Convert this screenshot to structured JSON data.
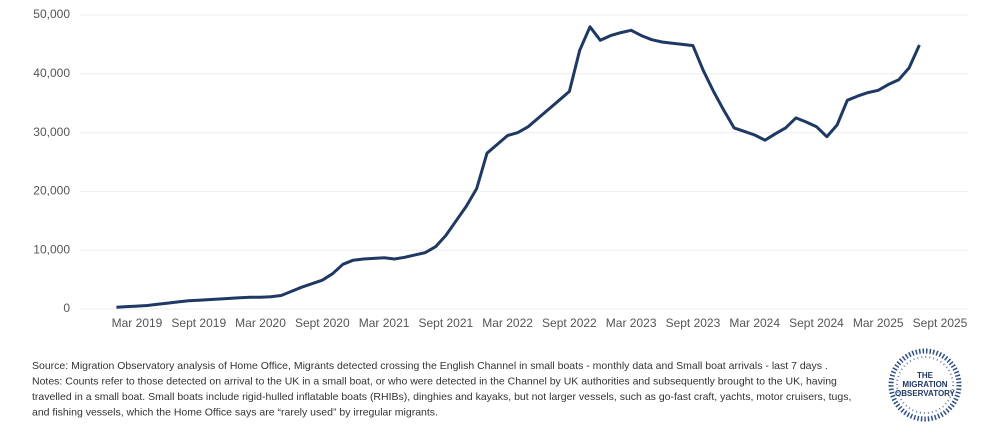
{
  "chart_data": {
    "type": "line",
    "x": [
      "2019-01",
      "2019-02",
      "2019-03",
      "2019-04",
      "2019-05",
      "2019-06",
      "2019-07",
      "2019-08",
      "2019-09",
      "2019-10",
      "2019-11",
      "2019-12",
      "2020-01",
      "2020-02",
      "2020-03",
      "2020-04",
      "2020-05",
      "2020-06",
      "2020-07",
      "2020-08",
      "2020-09",
      "2020-10",
      "2020-11",
      "2020-12",
      "2021-01",
      "2021-02",
      "2021-03",
      "2021-04",
      "2021-05",
      "2021-06",
      "2021-07",
      "2021-08",
      "2021-09",
      "2021-10",
      "2021-11",
      "2021-12",
      "2022-01",
      "2022-02",
      "2022-03",
      "2022-04",
      "2022-05",
      "2022-06",
      "2022-07",
      "2022-08",
      "2022-09",
      "2022-10",
      "2022-11",
      "2022-12",
      "2023-01",
      "2023-02",
      "2023-03",
      "2023-04",
      "2023-05",
      "2023-06",
      "2023-07",
      "2023-08",
      "2023-09",
      "2023-10",
      "2023-11",
      "2023-12",
      "2024-01",
      "2024-02",
      "2024-03",
      "2024-04",
      "2024-05",
      "2024-06",
      "2024-07",
      "2024-08",
      "2024-09",
      "2024-10",
      "2024-11",
      "2024-12",
      "2025-01",
      "2025-02",
      "2025-03",
      "2025-04",
      "2025-05",
      "2025-06",
      "2025-07"
    ],
    "series": [
      {
        "color": "#1f3864",
        "values": [
          300,
          400,
          500,
          600,
          800,
          1000,
          1200,
          1400,
          1500,
          1600,
          1700,
          1800,
          1900,
          2000,
          2000,
          2100,
          2300,
          3000,
          3700,
          4300,
          4900,
          6000,
          7600,
          8300,
          8500,
          8600,
          8700,
          8500,
          8800,
          9200,
          9600,
          10600,
          12500,
          15000,
          17500,
          20500,
          26500,
          28000,
          29500,
          30000,
          31000,
          32500,
          34000,
          35500,
          37000,
          44000,
          48000,
          45700,
          46500,
          47000,
          47400,
          46500,
          45800,
          45400,
          45200,
          45000,
          44800,
          40600,
          37000,
          33800,
          30800,
          30200,
          29600,
          28700,
          29800,
          30800,
          32500,
          31800,
          31000,
          29300,
          31300,
          35500,
          36200,
          36800,
          37200,
          38200,
          39000,
          41000,
          44900
        ]
      }
    ],
    "xticks": [
      {
        "value": "2019-03",
        "label": "Mar 2019"
      },
      {
        "value": "2019-09",
        "label": "Sept 2019"
      },
      {
        "value": "2020-03",
        "label": "Mar 2020"
      },
      {
        "value": "2020-09",
        "label": "Sept 2020"
      },
      {
        "value": "2021-03",
        "label": "Mar 2021"
      },
      {
        "value": "2021-09",
        "label": "Sept 2021"
      },
      {
        "value": "2022-03",
        "label": "Mar 2022"
      },
      {
        "value": "2022-09",
        "label": "Sept 2022"
      },
      {
        "value": "2023-03",
        "label": "Mar 2023"
      },
      {
        "value": "2023-09",
        "label": "Sept 2023"
      },
      {
        "value": "2024-03",
        "label": "Mar 2024"
      },
      {
        "value": "2024-09",
        "label": "Sept 2024"
      },
      {
        "value": "2025-03",
        "label": "Mar 2025"
      },
      {
        "value": "2025-09",
        "label": "Sept 2025"
      }
    ],
    "ylim": [
      0,
      50000
    ],
    "yticks": [
      0,
      {
        "value": 10000,
        "label": "10,000"
      },
      {
        "value": 20000,
        "label": "20,000"
      },
      {
        "value": 30000,
        "label": "30,000"
      },
      {
        "value": 40000,
        "label": "40,000"
      },
      {
        "value": 50000,
        "label": "50,000"
      }
    ],
    "grid": true,
    "notes": [
      "Source: Migration Observatory analysis of Home Office, Migrants detected crossing the English Channel in small boats - monthly data and Small boat arrivals - last 7 days .",
      "Notes:  Counts refer to those detected on arrival to the UK in a small boat, or who were detected in the Channel by UK authorities and subsequently brought to the UK, having",
      "travelled in a small boat. Small boats include rigid-hulled inflatable boats (RHIBs), dinghies and kayaks, but not larger vessels, such as go-fast craft, yachts, motor cruisers, tugs,",
      "and fishing vessels, which the Home Office says are “rarely used” by irregular migrants."
    ],
    "logo": [
      "THE",
      "MIGRATION",
      "OBSERVATORY"
    ]
  }
}
